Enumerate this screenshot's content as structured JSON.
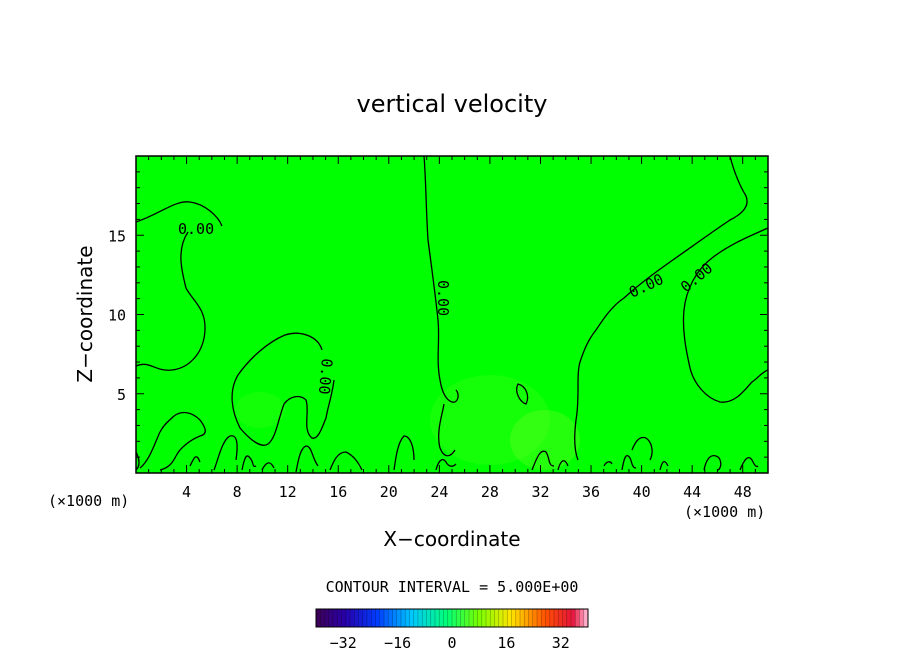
{
  "chart_data": {
    "type": "contour",
    "title": "vertical velocity",
    "xlabel": "X−coordinate",
    "ylabel": "Z−coordinate",
    "x_unit_left": "(×1000 m)",
    "x_unit_right": "(×1000 m)",
    "xlim": [
      0,
      50
    ],
    "ylim": [
      0,
      20
    ],
    "x_ticks": [
      4,
      8,
      12,
      16,
      20,
      24,
      28,
      32,
      36,
      40,
      44,
      48
    ],
    "y_ticks": [
      5,
      10,
      15
    ],
    "contour_labels": [
      "0.00",
      "0.00",
      "0.00",
      "0.00",
      "0.00"
    ],
    "contour_interval_text": "CONTOUR INTERVAL = 5.000E+00",
    "colorbar": {
      "min": -40,
      "max": 40,
      "ticks": [
        -32,
        -16,
        0,
        16,
        32
      ],
      "tick_labels": [
        "−32",
        "−16",
        "0",
        "16",
        "32"
      ]
    },
    "background_color": "#00ff00",
    "field_note_colors": [
      "#5dff1f",
      "#7cff2a"
    ]
  }
}
